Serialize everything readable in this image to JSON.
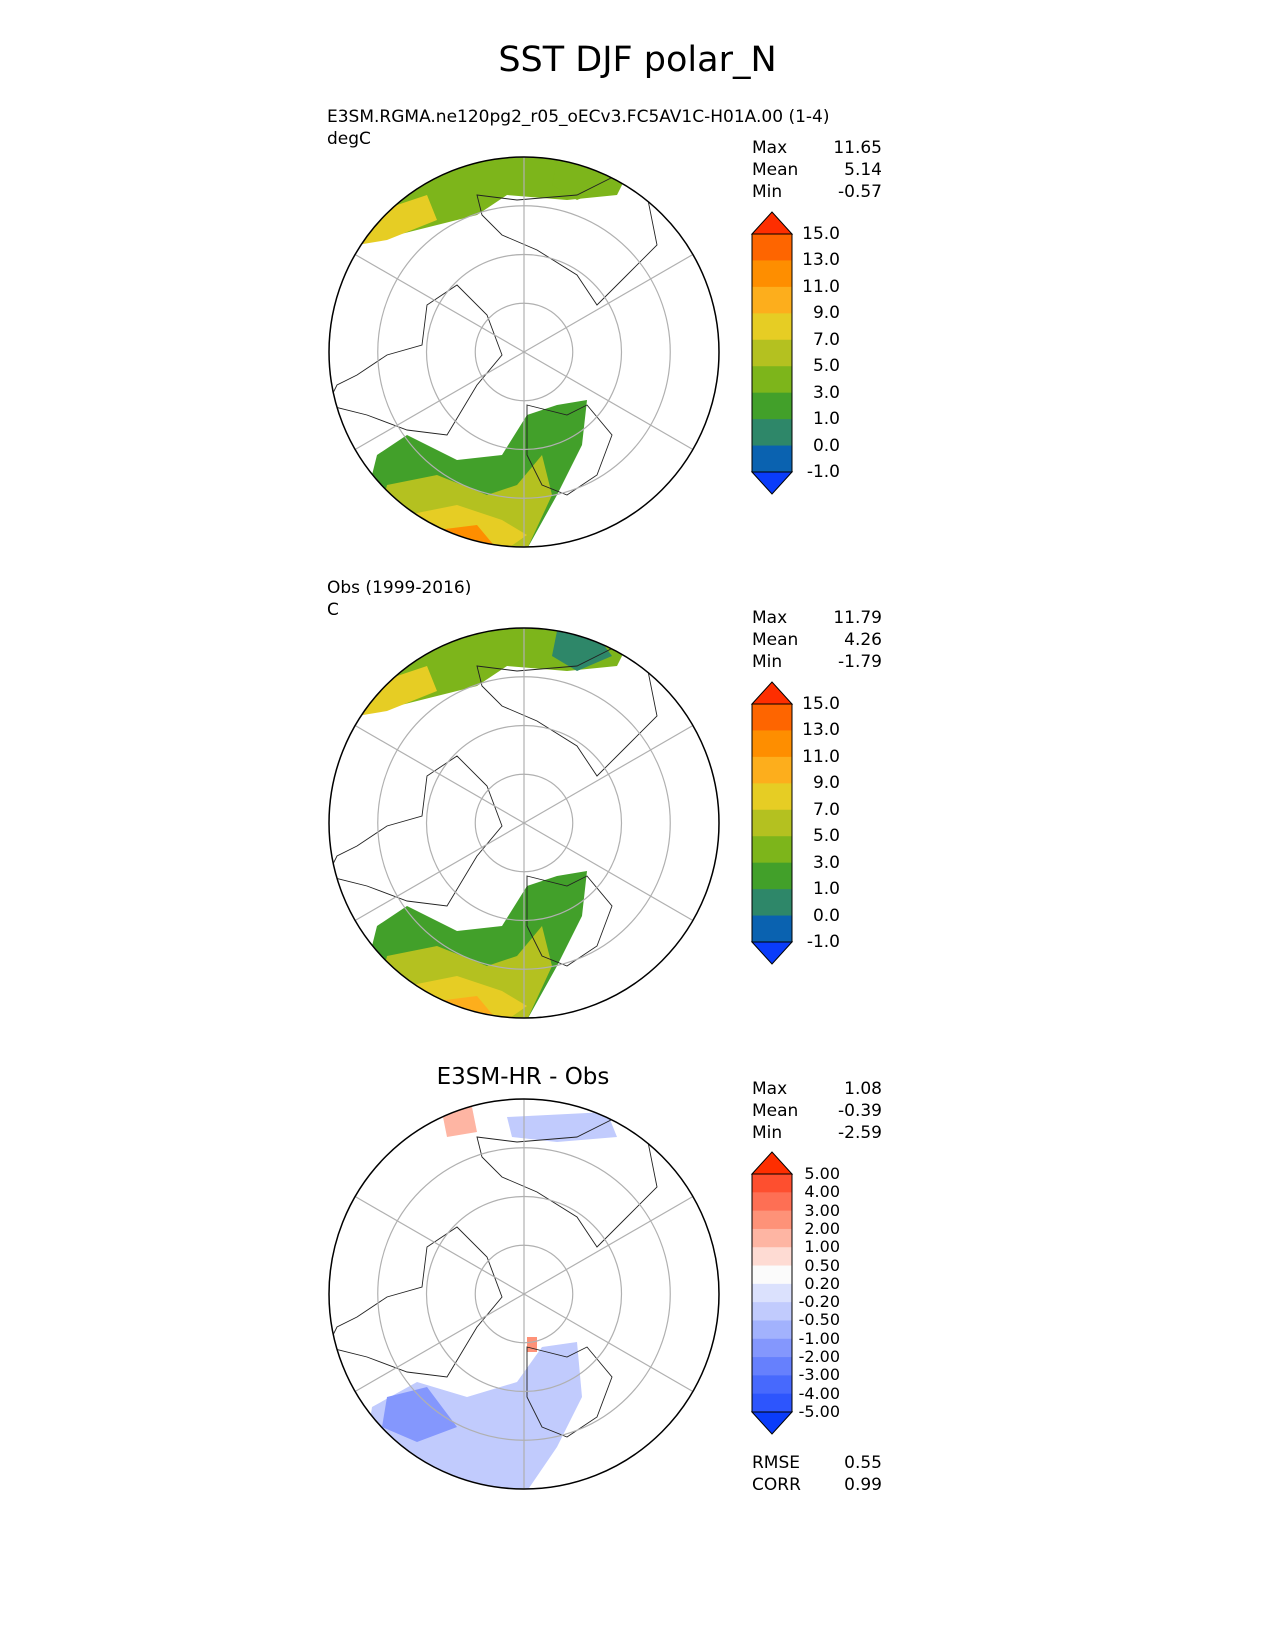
{
  "title": "SST DJF polar_N",
  "panels": [
    {
      "id": "model",
      "title_lines": [
        "E3SM.RGMA.ne120pg2_r05_oECv3.FC5AV1C-H01A.00 (1-4)",
        "degC"
      ],
      "stats": [
        {
          "label": "Max",
          "value": "11.65"
        },
        {
          "label": "Mean",
          "value": "5.14"
        },
        {
          "label": "Min",
          "value": "-0.57"
        }
      ],
      "colorbar": {
        "labels": [
          "15.0",
          "13.0",
          "11.0",
          "9.0",
          "7.0",
          "5.0",
          "3.0",
          "1.0",
          "0.0",
          "-1.0"
        ],
        "colors": [
          "#fe2e00",
          "#fe6500",
          "#fe8e00",
          "#fdae1c",
          "#e6cd24",
          "#b4c120",
          "#7db51b",
          "#42a02a",
          "#2e8769",
          "#0a62b0",
          "#0a3cfa"
        ],
        "top_color": "#fe2e00",
        "bottom_color": "#0a3cfa"
      }
    },
    {
      "id": "obs",
      "title_lines": [
        "Obs (1999-2016)",
        "C"
      ],
      "stats": [
        {
          "label": "Max",
          "value": "11.79"
        },
        {
          "label": "Mean",
          "value": "4.26"
        },
        {
          "label": "Min",
          "value": "-1.79"
        }
      ],
      "colorbar": {
        "labels": [
          "15.0",
          "13.0",
          "11.0",
          "9.0",
          "7.0",
          "5.0",
          "3.0",
          "1.0",
          "0.0",
          "-1.0"
        ],
        "colors": [
          "#fe2e00",
          "#fe6500",
          "#fe8e00",
          "#fdae1c",
          "#e6cd24",
          "#b4c120",
          "#7db51b",
          "#42a02a",
          "#2e8769",
          "#0a62b0",
          "#0a3cfa"
        ],
        "top_color": "#fe2e00",
        "bottom_color": "#0a3cfa"
      }
    },
    {
      "id": "diff",
      "title_lines": [
        "E3SM-HR - Obs"
      ],
      "stats": [
        {
          "label": "Max",
          "value": "1.08"
        },
        {
          "label": "Mean",
          "value": "-0.39"
        },
        {
          "label": "Min",
          "value": "-2.59"
        }
      ],
      "extra_stats": [
        {
          "label": "RMSE",
          "value": "0.55"
        },
        {
          "label": "CORR",
          "value": "0.99"
        }
      ],
      "colorbar": {
        "labels": [
          "5.00",
          "4.00",
          "3.00",
          "2.00",
          "1.00",
          "0.50",
          "0.20",
          "-0.20",
          "-0.50",
          "-1.00",
          "-2.00",
          "-3.00",
          "-4.00",
          "-5.00"
        ],
        "colors": [
          "#fe2e00",
          "#fe4f2f",
          "#fe6f54",
          "#fe9278",
          "#feb5a3",
          "#fedbd3",
          "#fbfbfb",
          "#dbe1fd",
          "#c1cbfd",
          "#a2b2fd",
          "#8497fd",
          "#6680fd",
          "#4769fd",
          "#2d55fd",
          "#0a3cfa"
        ],
        "top_color": "#fe2e00",
        "bottom_color": "#0a3cfa"
      }
    }
  ]
}
